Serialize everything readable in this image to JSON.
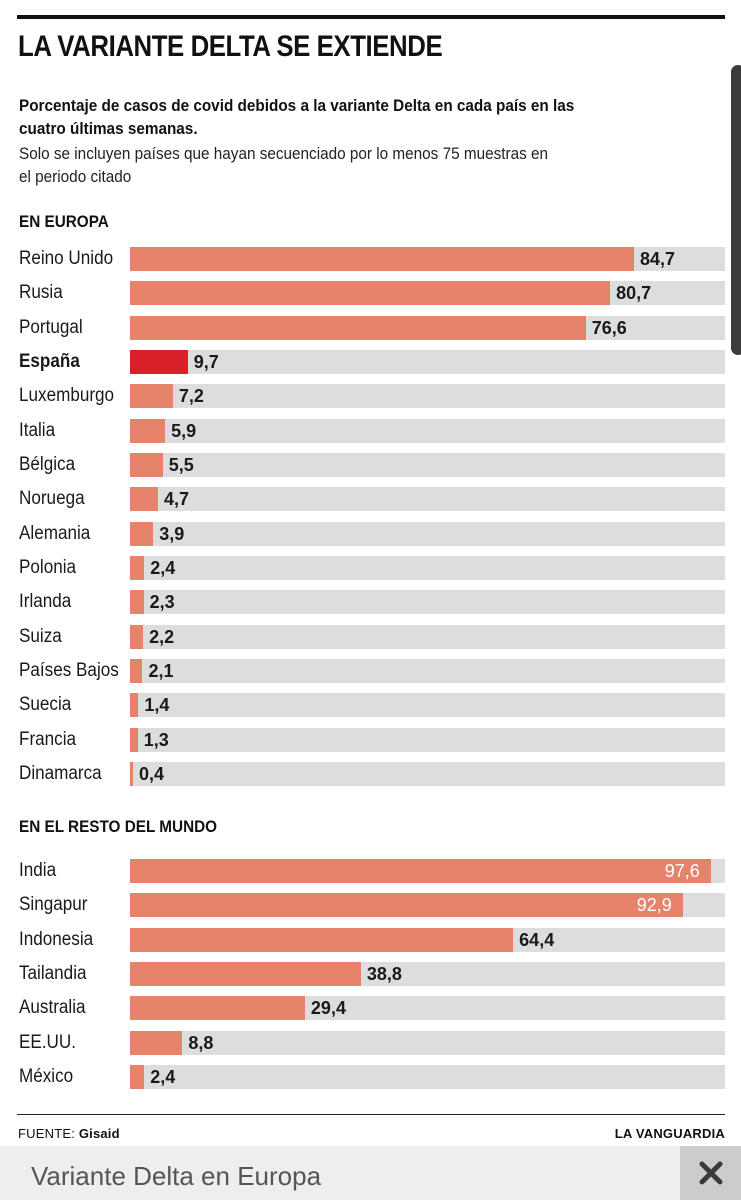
{
  "header": {
    "title": "LA VARIANTE DELTA SE EXTIENDE",
    "subtitle": "Porcentaje de casos de covid debidos a la variante Delta en cada país en las cuatro últimas semanas.",
    "note": "Solo se incluyen países que hayan secuenciado por lo menos 75 muestras en el periodo citado"
  },
  "footer": {
    "source_label": "FUENTE:",
    "source_value": "Gisaid",
    "brand": "LA VANGUARDIA"
  },
  "caption": {
    "text": "Variante Delta en Europa",
    "close_icon": "close-icon"
  },
  "colors": {
    "bar": "#e5846a",
    "highlight": "#d8202a",
    "track": "#dddddd"
  },
  "chart_data": [
    {
      "type": "bar",
      "orientation": "horizontal",
      "title": "EN EUROPA",
      "xlim": [
        0,
        100
      ],
      "highlighted": "España",
      "rows": [
        {
          "label": "Reino Unido",
          "value": 84.7,
          "display": "84,7"
        },
        {
          "label": "Rusia",
          "value": 80.7,
          "display": "80,7"
        },
        {
          "label": "Portugal",
          "value": 76.6,
          "display": "76,6"
        },
        {
          "label": "España",
          "value": 9.7,
          "display": "9,7"
        },
        {
          "label": "Luxemburgo",
          "value": 7.2,
          "display": "7,2"
        },
        {
          "label": "Italia",
          "value": 5.9,
          "display": "5,9"
        },
        {
          "label": "Bélgica",
          "value": 5.5,
          "display": "5,5"
        },
        {
          "label": "Noruega",
          "value": 4.7,
          "display": "4,7"
        },
        {
          "label": "Alemania",
          "value": 3.9,
          "display": "3,9"
        },
        {
          "label": "Polonia",
          "value": 2.4,
          "display": "2,4"
        },
        {
          "label": "Irlanda",
          "value": 2.3,
          "display": "2,3"
        },
        {
          "label": "Suiza",
          "value": 2.2,
          "display": "2,2"
        },
        {
          "label": "Países Bajos",
          "value": 2.1,
          "display": "2,1"
        },
        {
          "label": "Suecia",
          "value": 1.4,
          "display": "1,4"
        },
        {
          "label": "Francia",
          "value": 1.3,
          "display": "1,3"
        },
        {
          "label": "Dinamarca",
          "value": 0.4,
          "display": "0,4"
        }
      ]
    },
    {
      "type": "bar",
      "orientation": "horizontal",
      "title": "EN EL RESTO DEL MUNDO",
      "xlim": [
        0,
        100
      ],
      "rows": [
        {
          "label": "India",
          "value": 97.6,
          "display": "97,6"
        },
        {
          "label": "Singapur",
          "value": 92.9,
          "display": "92,9"
        },
        {
          "label": "Indonesia",
          "value": 64.4,
          "display": "64,4"
        },
        {
          "label": "Tailandia",
          "value": 38.8,
          "display": "38,8"
        },
        {
          "label": "Australia",
          "value": 29.4,
          "display": "29,4"
        },
        {
          "label": "EE.UU.",
          "value": 8.8,
          "display": "8,8"
        },
        {
          "label": "México",
          "value": 2.4,
          "display": "2,4"
        }
      ]
    }
  ]
}
